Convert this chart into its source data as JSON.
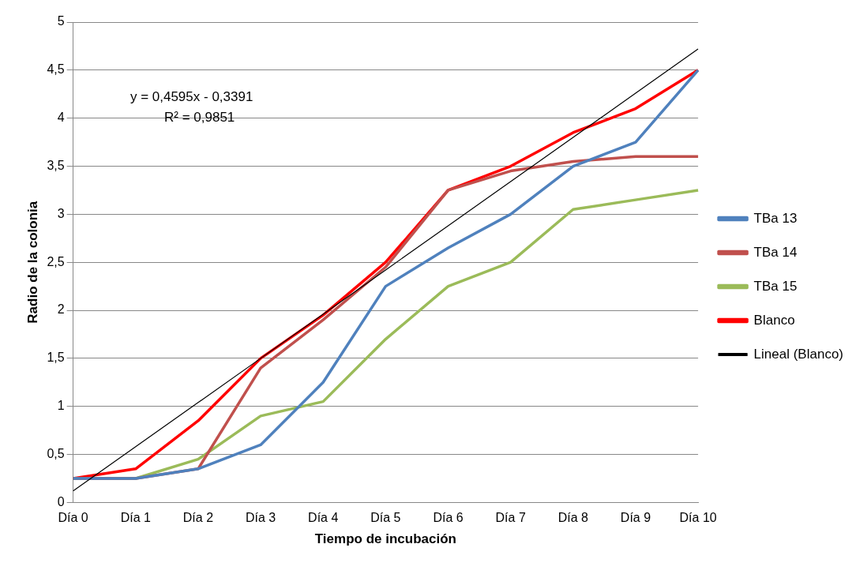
{
  "chart_data": {
    "type": "line",
    "xlabel": "Tiempo de incubación",
    "ylabel": "Radio de la colonia",
    "categories": [
      "Día 0",
      "Día 1",
      "Día 2",
      "Día 3",
      "Día 4",
      "Día 5",
      "Día 6",
      "Día 7",
      "Día 8",
      "Día 9",
      "Día 10"
    ],
    "series": [
      {
        "name": "TBa 13",
        "color": "#4f81bd",
        "values": [
          0.25,
          0.25,
          0.35,
          0.6,
          1.25,
          2.25,
          2.65,
          3.0,
          3.5,
          3.75,
          4.5
        ]
      },
      {
        "name": "TBa 14",
        "color": "#c0504d",
        "values": [
          0.25,
          0.25,
          0.35,
          1.4,
          1.9,
          2.45,
          3.25,
          3.45,
          3.55,
          3.6,
          3.6
        ]
      },
      {
        "name": "TBa 15",
        "color": "#9bbb59",
        "values": [
          0.25,
          0.25,
          0.45,
          0.9,
          1.05,
          1.7,
          2.25,
          2.5,
          3.05,
          3.15,
          3.25
        ]
      },
      {
        "name": "Blanco",
        "color": "#ff0000",
        "values": [
          0.25,
          0.35,
          0.85,
          1.5,
          1.95,
          2.5,
          3.25,
          3.5,
          3.85,
          4.1,
          4.5
        ]
      },
      {
        "name": "Lineal (Blanco)",
        "color": "#000000",
        "values": [
          0.12,
          0.58,
          1.04,
          1.5,
          1.96,
          2.42,
          2.88,
          3.34,
          3.8,
          4.26,
          4.72
        ]
      }
    ],
    "ylim": [
      0,
      5
    ],
    "yticks": [
      0,
      {
        "value": 0.5,
        "label": "0,5"
      },
      1,
      {
        "value": 1.5,
        "label": "1,5"
      },
      2,
      {
        "value": 2.5,
        "label": "2,5"
      },
      3,
      {
        "value": 3.5,
        "label": "3,5"
      },
      4,
      {
        "value": 4.5,
        "label": "4,5"
      },
      5
    ],
    "grid": "y",
    "legend": "right",
    "marker": "none",
    "annotations": [
      "y = 0,4595x - 0,3391",
      "R² = 0,9851"
    ]
  }
}
